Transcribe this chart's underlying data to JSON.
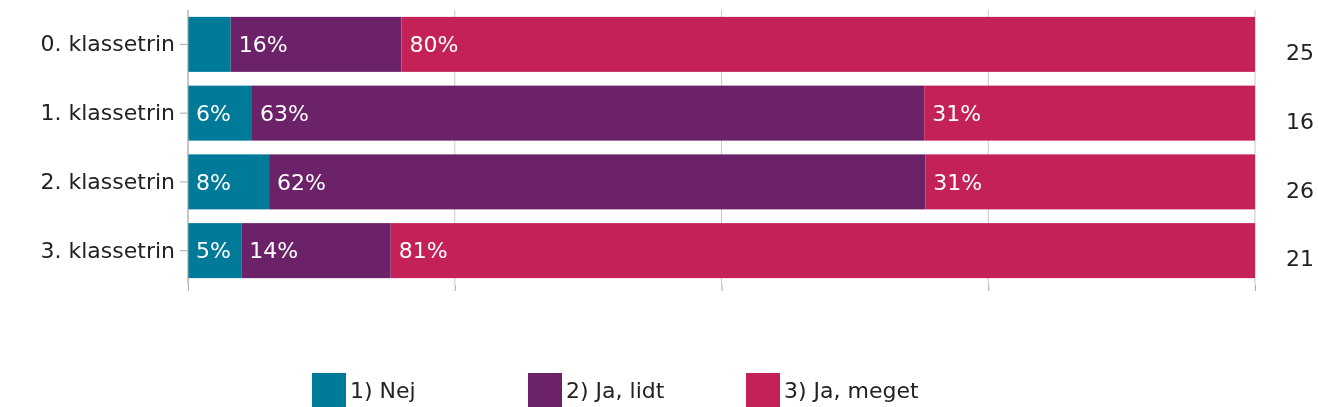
{
  "chart_data": {
    "type": "bar",
    "orientation": "horizontal",
    "stacked": true,
    "categories": [
      "0. klassetrin",
      "1. klassetrin",
      "2. klassetrin",
      "3. klassetrin"
    ],
    "series": [
      {
        "name": "1) Nej",
        "color": "#007a99",
        "values": [
          4,
          6,
          7.6,
          5
        ],
        "value_labels": [
          null,
          "6%",
          "8%",
          "5%"
        ]
      },
      {
        "name": "2) Ja, lidt",
        "color": "#6b2268",
        "values": [
          16,
          63,
          61.5,
          14
        ],
        "value_labels": [
          "16%",
          "63%",
          "62%",
          "14%"
        ]
      },
      {
        "name": "3) Ja, meget",
        "color": "#c42157",
        "values": [
          80,
          31,
          30.9,
          81
        ],
        "value_labels": [
          "80%",
          "31%",
          "31%",
          "81%"
        ]
      }
    ],
    "annotations": [
      "25",
      "16",
      "26",
      "21"
    ],
    "xlim": [
      0,
      100
    ],
    "xticks": [
      {
        "value": 0,
        "label": null
      },
      {
        "value": 25,
        "label": null
      },
      {
        "value": 50,
        "label": null
      },
      {
        "value": 75,
        "label": null
      },
      {
        "value": 100,
        "label": null
      }
    ],
    "tick_labels": "y",
    "grid": "x",
    "legend": "bottom"
  }
}
